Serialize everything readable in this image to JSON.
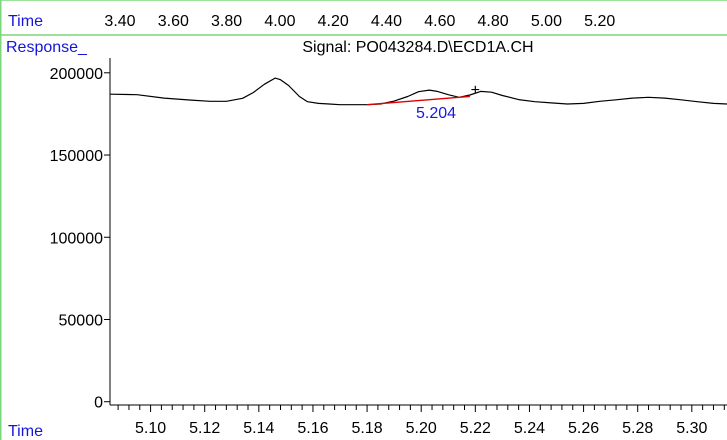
{
  "header": {
    "time_label": "Time",
    "top_ticks": [
      "3.40",
      "3.60",
      "3.80",
      "4.00",
      "4.20",
      "4.40",
      "4.60",
      "4.80",
      "5.00",
      "5.20"
    ]
  },
  "chart_data": {
    "type": "line",
    "title": "Signal: PO043284.D\\ECD1A.CH",
    "ylabel": "Response_",
    "xlabel": "Time",
    "xlim": [
      5.085,
      5.313
    ],
    "ylim": [
      -2000,
      209000
    ],
    "x_ticks_labeled": [
      5.1,
      5.12,
      5.14,
      5.16,
      5.18,
      5.2,
      5.22,
      5.24,
      5.26,
      5.28,
      5.3
    ],
    "x_tick_labels": [
      "5.10",
      "5.12",
      "5.14",
      "5.16",
      "5.18",
      "5.20",
      "5.22",
      "5.24",
      "5.26",
      "5.28",
      "5.30"
    ],
    "x_minor_step": 0.004,
    "y_ticks": [
      0,
      50000,
      100000,
      150000,
      200000
    ],
    "y_tick_labels": [
      "0",
      "50000",
      "100000",
      "150000",
      "200000"
    ],
    "grid": false,
    "series": [
      {
        "color": "#000000",
        "x": [
          5.085,
          5.095,
          5.105,
          5.115,
          5.122,
          5.128,
          5.134,
          5.138,
          5.142,
          5.146,
          5.148,
          5.151,
          5.155,
          5.158,
          5.162,
          5.166,
          5.17,
          5.175,
          5.18,
          5.185,
          5.19,
          5.195,
          5.199,
          5.203,
          5.206,
          5.21,
          5.214,
          5.218,
          5.222,
          5.226,
          5.23,
          5.236,
          5.242,
          5.248,
          5.254,
          5.26,
          5.266,
          5.272,
          5.278,
          5.284,
          5.29,
          5.296,
          5.302,
          5.308,
          5.313
        ],
        "y": [
          187000,
          186700,
          184600,
          183400,
          182700,
          182700,
          184500,
          188000,
          193000,
          196800,
          195800,
          192300,
          185600,
          182400,
          181400,
          181000,
          180600,
          180600,
          180600,
          181000,
          182800,
          185600,
          188500,
          189500,
          188700,
          186700,
          185100,
          186500,
          188700,
          188200,
          186200,
          183700,
          182400,
          181700,
          181000,
          181400,
          182700,
          183600,
          184600,
          185100,
          184600,
          183600,
          182400,
          181400,
          181000
        ]
      }
    ],
    "peaks": [
      {
        "label": "5.204",
        "color": "#1818e0",
        "baseline_color": "#e00000",
        "baseline": {
          "x": [
            5.18,
            5.218
          ],
          "y": [
            180600,
            185600
          ]
        }
      }
    ],
    "marker": {
      "glyph": "+",
      "x": 5.22,
      "y": 190000
    }
  }
}
